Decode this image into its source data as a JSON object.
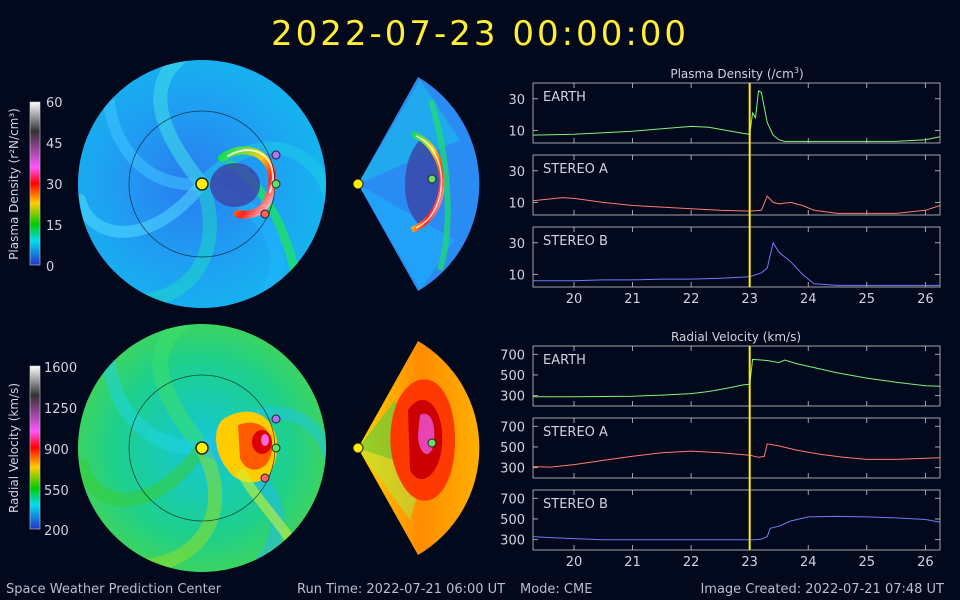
{
  "header": {
    "datetime": "2022-07-23  00:00:00"
  },
  "colorbars": [
    {
      "label": "Plasma Density (r²N/cm³)",
      "ticks": [
        "60",
        "45",
        "30",
        "15",
        "0"
      ],
      "stops": [
        "#ffffff",
        "#2a2a2a",
        "#ff55ff",
        "#ff0000",
        "#ffcc00",
        "#00cc00",
        "#00ddee",
        "#3355ff",
        "#2222aa"
      ]
    },
    {
      "label": "Radial Velocity (km/s)",
      "ticks": [
        "1600",
        "1250",
        "900",
        "550",
        "200"
      ],
      "stops": [
        "#ffffff",
        "#2a2a2a",
        "#ff55ff",
        "#ff0000",
        "#ffcc00",
        "#00cc00",
        "#00ddee",
        "#3355ff",
        "#2222aa"
      ]
    }
  ],
  "panels": {
    "density_title_main": "Plasma Density (/cm",
    "density_title_sup": "3",
    "density_title_close": ")",
    "velocity_title": "Radial Velocity (km/s)"
  },
  "chart_data": [
    {
      "type": "line",
      "title": "Plasma Density (/cm³)",
      "xlim": [
        19.3,
        26.25
      ],
      "x_ticks": [
        20,
        21,
        22,
        23,
        24,
        25,
        26
      ],
      "current_time": 23,
      "series": [
        {
          "name": "EARTH",
          "color": "#7df27d",
          "ylim": [
            2,
            40
          ],
          "yticks": [
            10,
            30
          ],
          "x": [
            19.3,
            20.0,
            20.5,
            21.0,
            21.5,
            22.0,
            22.3,
            22.6,
            22.9,
            23.0,
            23.05,
            23.1,
            23.15,
            23.2,
            23.3,
            23.4,
            23.5,
            23.6,
            24.0,
            24.5,
            25.0,
            25.5,
            26.0,
            26.25
          ],
          "y": [
            7,
            7.5,
            8.5,
            9.5,
            11,
            12.5,
            12,
            10,
            8,
            7.5,
            21,
            18,
            35,
            34,
            15,
            7,
            4,
            3,
            3,
            3,
            3,
            3,
            4,
            6
          ]
        },
        {
          "name": "STEREO A",
          "color": "#ff7b6b",
          "ylim": [
            2,
            40
          ],
          "yticks": [
            10,
            30
          ],
          "x": [
            19.3,
            19.8,
            20.0,
            20.5,
            21.0,
            21.5,
            22.0,
            22.5,
            23.0,
            23.2,
            23.3,
            23.4,
            23.5,
            23.7,
            23.9,
            24.1,
            24.5,
            25.0,
            25.5,
            26.0,
            26.25
          ],
          "y": [
            11,
            13,
            12.5,
            10,
            8,
            7,
            6,
            5,
            4.5,
            5,
            14,
            10,
            9,
            10,
            8,
            5,
            3,
            3,
            3,
            5,
            8
          ]
        },
        {
          "name": "STEREO B",
          "color": "#6a7bff",
          "ylim": [
            2,
            40
          ],
          "yticks": [
            10,
            30
          ],
          "x": [
            19.3,
            20.0,
            20.5,
            21.0,
            21.5,
            22.0,
            22.5,
            23.0,
            23.2,
            23.3,
            23.4,
            23.5,
            23.7,
            23.9,
            24.1,
            24.5,
            25.0,
            25.5,
            26.0,
            26.25
          ],
          "y": [
            6,
            6,
            6.5,
            6.5,
            7,
            7,
            7.5,
            8.5,
            11,
            14,
            30,
            24,
            18,
            10,
            4,
            3,
            3,
            3,
            3,
            3
          ]
        }
      ]
    },
    {
      "type": "line",
      "title": "Radial Velocity (km/s)",
      "xlim": [
        19.3,
        26.25
      ],
      "x_ticks": [
        20,
        21,
        22,
        23,
        24,
        25,
        26
      ],
      "current_time": 23,
      "series": [
        {
          "name": "EARTH",
          "color": "#7df27d",
          "ylim": [
            200,
            780
          ],
          "yticks": [
            300,
            500,
            700
          ],
          "x": [
            19.3,
            20.0,
            21.0,
            21.5,
            22.0,
            22.3,
            22.6,
            22.9,
            23.0,
            23.05,
            23.3,
            23.5,
            23.6,
            23.8,
            24.5,
            25.0,
            25.5,
            26.0,
            26.25
          ],
          "y": [
            290,
            290,
            295,
            305,
            320,
            340,
            370,
            405,
            410,
            650,
            640,
            620,
            645,
            610,
            520,
            470,
            430,
            395,
            390
          ]
        },
        {
          "name": "STEREO A",
          "color": "#ff7b6b",
          "ylim": [
            200,
            780
          ],
          "yticks": [
            300,
            500,
            700
          ],
          "x": [
            19.3,
            19.6,
            20.0,
            20.5,
            21.0,
            21.5,
            22.0,
            22.5,
            23.0,
            23.15,
            23.25,
            23.3,
            23.5,
            23.8,
            24.2,
            24.6,
            25.0,
            25.5,
            26.0,
            26.25
          ],
          "y": [
            310,
            305,
            330,
            370,
            410,
            445,
            460,
            445,
            420,
            400,
            410,
            530,
            510,
            470,
            430,
            400,
            380,
            380,
            390,
            395
          ]
        },
        {
          "name": "STEREO B",
          "color": "#6a7bff",
          "ylim": [
            200,
            780
          ],
          "yticks": [
            300,
            500,
            700
          ],
          "x": [
            19.3,
            19.6,
            20.0,
            20.5,
            21.0,
            21.5,
            22.0,
            22.5,
            23.0,
            23.1,
            23.2,
            23.3,
            23.35,
            23.5,
            23.7,
            24.0,
            24.5,
            25.0,
            25.5,
            26.0,
            26.25
          ],
          "y": [
            330,
            320,
            310,
            300,
            300,
            300,
            300,
            300,
            300,
            300,
            305,
            330,
            410,
            430,
            480,
            520,
            525,
            520,
            510,
            495,
            470
          ]
        }
      ]
    }
  ],
  "footer": {
    "org": "Space Weather Prediction Center",
    "run_time": "Run Time: 2022-07-21 06:00 UT",
    "mode": "Mode: CME",
    "created": "Image Created: 2022-07-21 07:48 UT"
  }
}
